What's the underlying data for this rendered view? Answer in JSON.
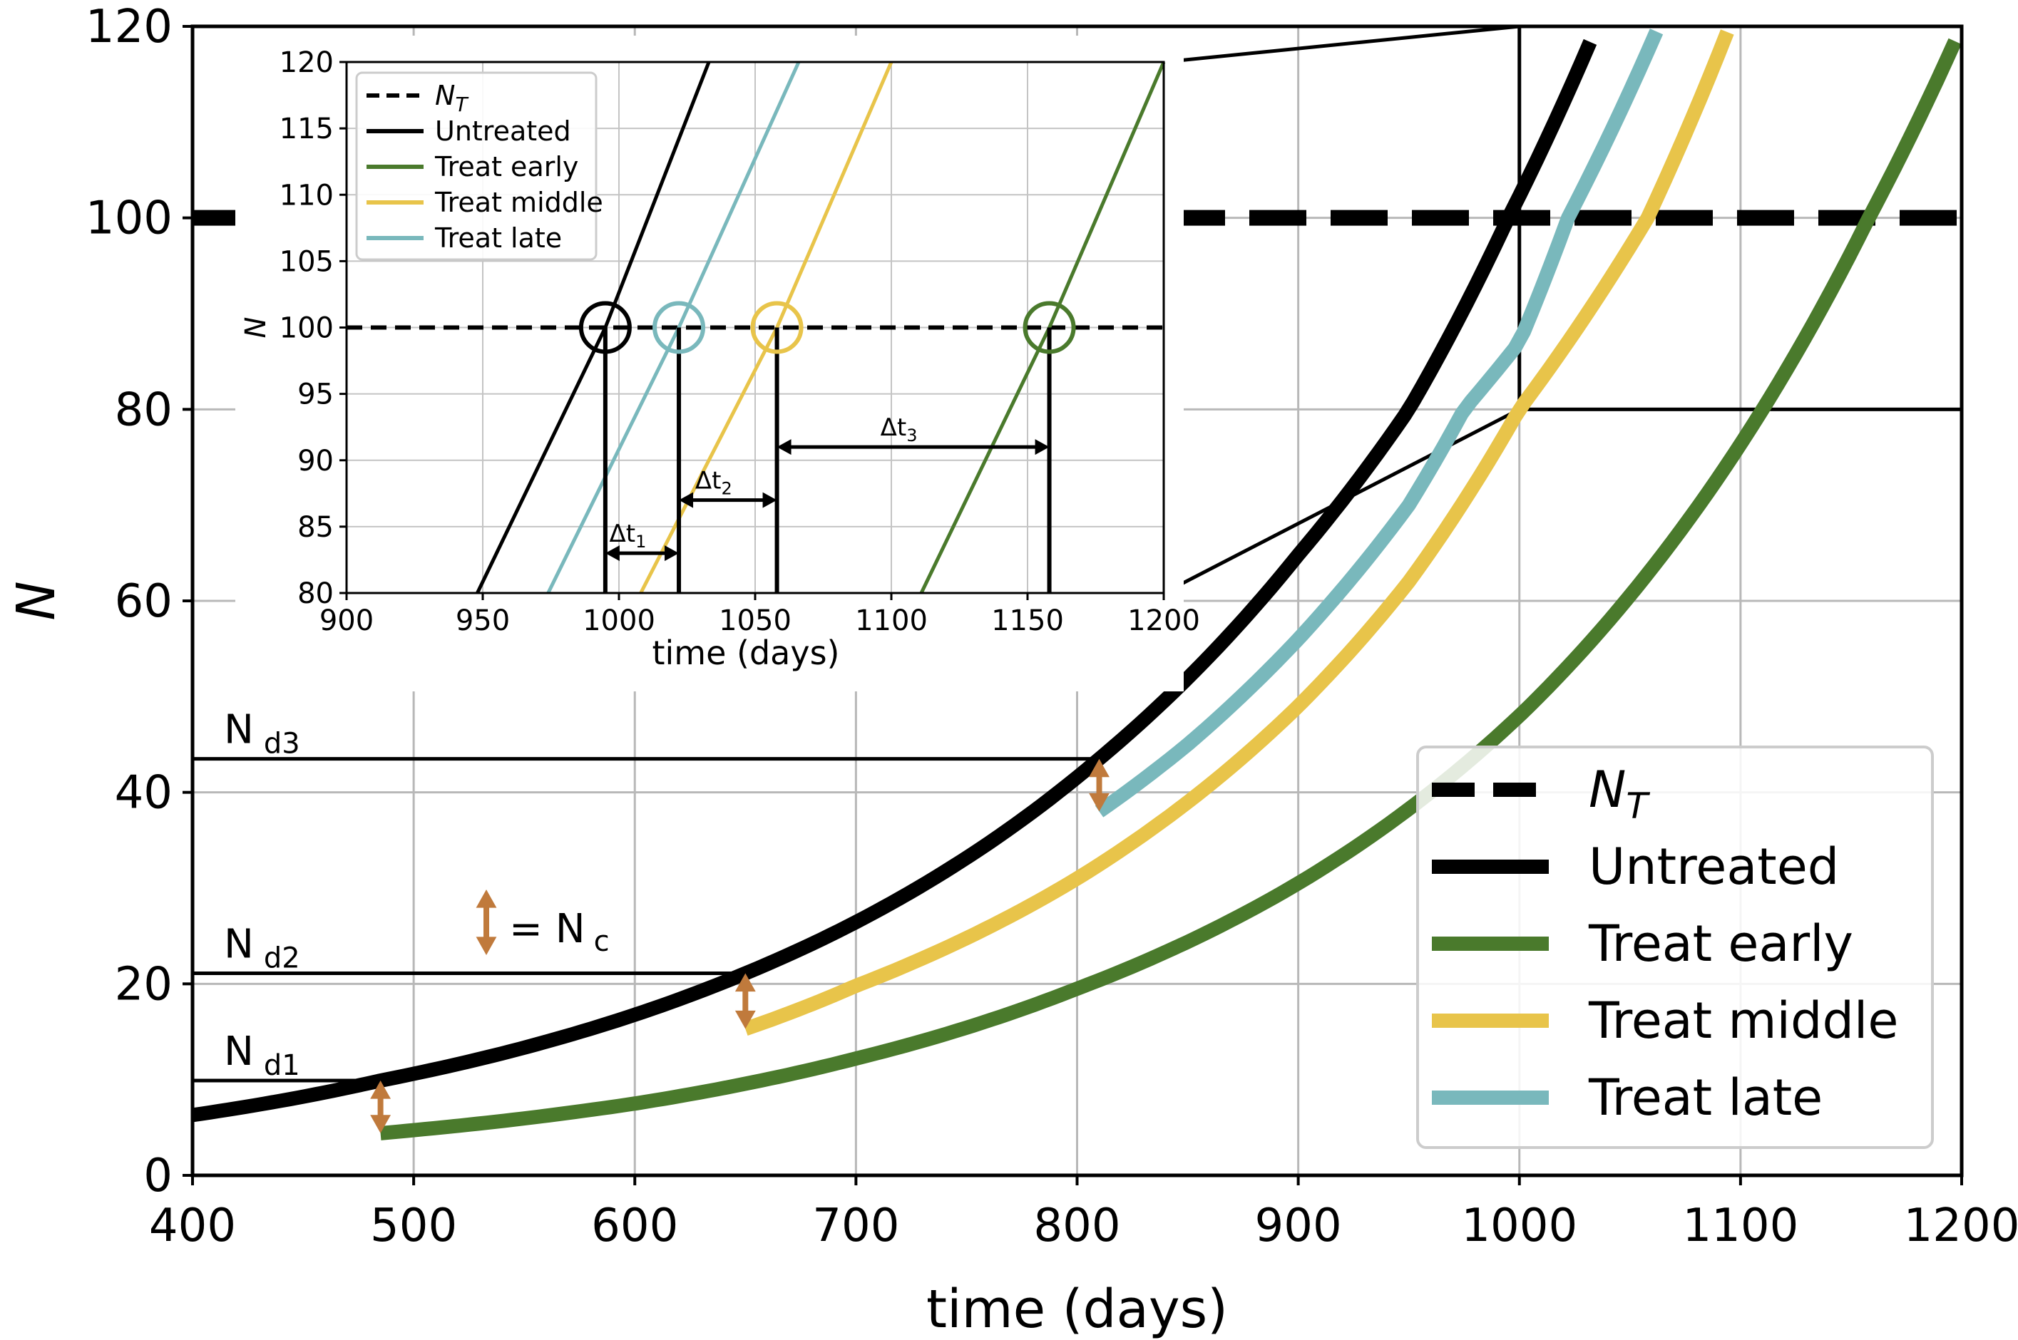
{
  "chart_data": [
    {
      "type": "line",
      "title": "",
      "xlabel": "time (days)",
      "ylabel": "N",
      "xlim": [
        400,
        1200
      ],
      "ylim": [
        0,
        120
      ],
      "xticks": [
        "400",
        "500",
        "600",
        "700",
        "800",
        "900",
        "1000",
        "1100",
        "1200"
      ],
      "yticks": [
        "0",
        "20",
        "40",
        "60",
        "80",
        "100",
        "120"
      ],
      "grid": true,
      "legend_position": "lower-right",
      "legend": [
        "N_T",
        "Untreated",
        "Treat early",
        "Treat middle",
        "Treat late"
      ],
      "threshold": {
        "name": "N_T",
        "y": 100,
        "style": "dashed",
        "color": "#000000"
      },
      "series": [
        {
          "name": "Untreated",
          "color": "#000000",
          "x": [
            400,
            485,
            650,
            810,
            900,
            950,
            995,
            1035
          ],
          "y": [
            6.3,
            9.9,
            21.1,
            43.5,
            64.8,
            80,
            100,
            120
          ]
        },
        {
          "name": "Treat early",
          "color": "#4a7a2c",
          "x": [
            485,
            600,
            700,
            800,
            900,
            1000,
            1110,
            1158,
            1200
          ],
          "y": [
            4.4,
            7.5,
            12.2,
            19.5,
            30.5,
            48,
            80,
            100,
            120
          ]
        },
        {
          "name": "Treat middle",
          "color": "#e8c44a",
          "x": [
            650,
            700,
            800,
            900,
            950,
            1000,
            1058,
            1095
          ],
          "y": [
            15.3,
            19.8,
            31,
            49,
            62,
            80,
            100,
            120
          ]
        },
        {
          "name": "Treat late",
          "color": "#79b8bc",
          "x": [
            810,
            850,
            900,
            950,
            975,
            1000,
            1022,
            1063
          ],
          "y": [
            38,
            45,
            56,
            70,
            80,
            87,
            100,
            120
          ]
        }
      ],
      "thresholds_d": [
        {
          "label": "N",
          "subscript": "d1",
          "y": 9.9,
          "x_end": 485
        },
        {
          "label": "N",
          "subscript": "d2",
          "y": 21.1,
          "x_end": 650
        },
        {
          "label": "N",
          "subscript": "d3",
          "y": 43.5,
          "x_end": 810
        }
      ],
      "treatment_drops": [
        {
          "x": 485,
          "y_from": 9.9,
          "y_to": 4.4
        },
        {
          "x": 650,
          "y_from": 21.1,
          "y_to": 15.3
        },
        {
          "x": 810,
          "y_from": 43.5,
          "y_to": 38
        }
      ],
      "drop_color": "#c07a3c",
      "nc_annotation": {
        "text": "= N",
        "subscript": "c"
      },
      "zoom_box": {
        "x": [
          1000,
          1200
        ],
        "y": [
          80,
          120
        ]
      }
    },
    {
      "type": "line",
      "title": "",
      "xlabel": "time (days)",
      "ylabel": "N",
      "xlim": [
        900,
        1200
      ],
      "ylim": [
        80,
        120
      ],
      "xticks": [
        "900",
        "950",
        "1000",
        "1050",
        "1100",
        "1150",
        "1200"
      ],
      "yticks": [
        "80",
        "85",
        "90",
        "95",
        "100",
        "105",
        "110",
        "115",
        "120"
      ],
      "grid": true,
      "legend_position": "top-left",
      "legend": [
        "N_T",
        "Untreated",
        "Treat early",
        "Treat middle",
        "Treat late"
      ],
      "threshold": {
        "name": "N_T",
        "y": 100
      },
      "series": [
        {
          "name": "Untreated",
          "x": [
            948,
            995,
            1033
          ],
          "y": [
            80,
            100,
            120
          ]
        },
        {
          "name": "Treat early",
          "x": [
            1111,
            1158,
            1200
          ],
          "y": [
            80,
            100,
            120
          ]
        },
        {
          "name": "Treat middle",
          "x": [
            1008,
            1058,
            1100
          ],
          "y": [
            80,
            100,
            120
          ]
        },
        {
          "name": "Treat late",
          "x": [
            974,
            1022,
            1066
          ],
          "y": [
            80,
            100,
            120
          ]
        }
      ],
      "crossings": [
        995,
        1022,
        1058,
        1158
      ],
      "intervals": [
        {
          "label": "Δt",
          "subscript": "1",
          "from": 995,
          "to": 1022,
          "y": 83
        },
        {
          "label": "Δt",
          "subscript": "2",
          "from": 1022,
          "to": 1058,
          "y": 87
        },
        {
          "label": "Δt",
          "subscript": "3",
          "from": 1058,
          "to": 1158,
          "y": 91
        }
      ]
    }
  ]
}
